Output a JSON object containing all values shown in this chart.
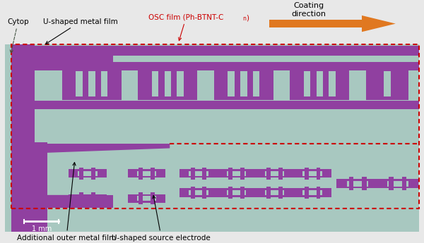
{
  "bg_color": "#a8c8c0",
  "purple": "#9040a0",
  "red_border": "#cc0000",
  "orange_arrow": "#e07820",
  "white": "#ffffff",
  "label_cytop": "Cytop",
  "label_u_metal": "U-shaped metal film",
  "label_osc": "OSC film (Ph-BTNT-C",
  "label_osc_sub": "n",
  "label_osc_end": ")",
  "label_coating": "Coating\ndirection",
  "label_outer": "Additional outer metal film",
  "label_source": "U-shaped source electrode",
  "scale_label": "1 mm",
  "fig_width": 6.0,
  "fig_height": 3.45
}
